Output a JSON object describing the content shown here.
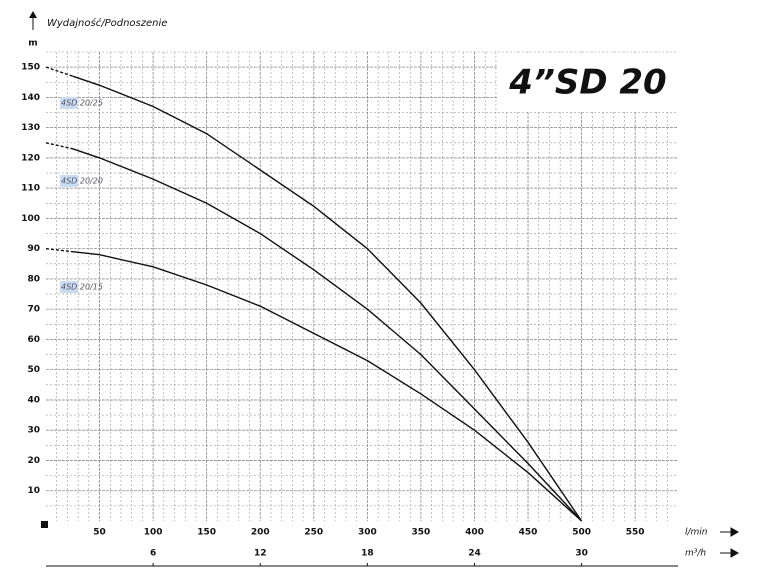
{
  "chart_data": {
    "type": "line",
    "title": "4”SD 20",
    "y_label": "Wydajność/Podnoszenie",
    "y_unit": "m",
    "x_unit": "l/min",
    "x2_unit": "m³/h",
    "xlim": [
      0,
      590
    ],
    "xticks": [
      50,
      100,
      150,
      200,
      250,
      300,
      350,
      400,
      450,
      500,
      550
    ],
    "x2lim": [
      0,
      35.4
    ],
    "x2ticks": [
      6,
      12,
      18,
      24,
      30
    ],
    "ylim": [
      0,
      155
    ],
    "yticks": [
      10,
      20,
      30,
      40,
      50,
      60,
      70,
      80,
      90,
      100,
      110,
      120,
      130,
      140,
      150
    ],
    "grid": true,
    "x": [
      0,
      25,
      50,
      100,
      150,
      200,
      250,
      300,
      350,
      400,
      450,
      500
    ],
    "series": [
      {
        "name": "4SD 20/25",
        "color": "#111111",
        "values": [
          150,
          147,
          144,
          137,
          128,
          116,
          104,
          90,
          72,
          50,
          26,
          0
        ]
      },
      {
        "name": "4SD 20/20",
        "color": "#111111",
        "values": [
          125,
          123,
          120,
          113,
          105,
          95,
          83,
          70,
          55,
          37,
          19,
          0
        ]
      },
      {
        "name": "4SD 20/15",
        "color": "#111111",
        "values": [
          90,
          89,
          88,
          84,
          78,
          71,
          62,
          53,
          42,
          30,
          16,
          0
        ]
      }
    ]
  }
}
